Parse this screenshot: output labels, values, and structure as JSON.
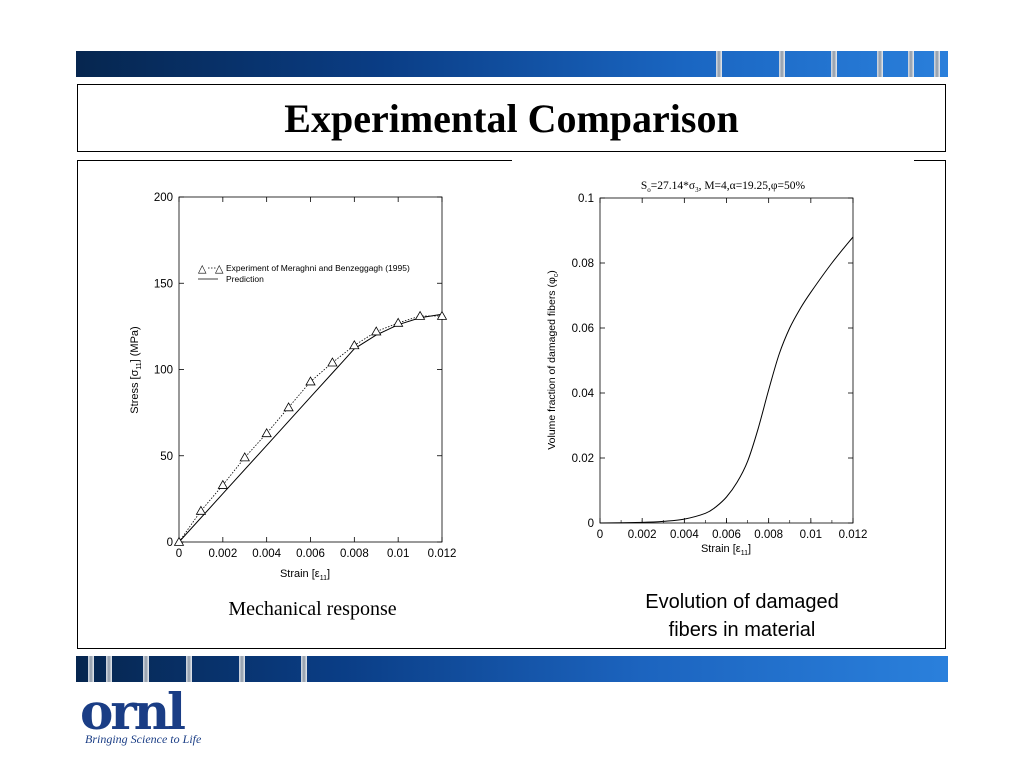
{
  "slide": {
    "title": "Experimental Comparison",
    "caption_left": "Mechanical response",
    "caption_right_line1": "Evolution of damaged",
    "caption_right_line2": "fibers in material",
    "logo_text": "ornl",
    "logo_tagline": "Bringing Science to Life"
  },
  "colors": {
    "band_dark": "#06264f",
    "band_light": "#2a7fdb",
    "logo": "#1a3d85"
  },
  "chart_data": [
    {
      "type": "line",
      "xlabel_main": "Strain [ε",
      "xlabel_sub": "11",
      "xlabel_end": "]",
      "ylabel_main": "Stress [σ",
      "ylabel_sub": "11",
      "ylabel_end": "] (MPa)",
      "xlim": [
        0,
        0.012
      ],
      "ylim": [
        0,
        200
      ],
      "x_ticks": [
        "0",
        "0.002",
        "0.004",
        "0.006",
        "0.008",
        "0.01",
        "0.012"
      ],
      "y_ticks": [
        "0",
        "50",
        "100",
        "150",
        "200"
      ],
      "legend_position": "upper-left",
      "series": [
        {
          "name": "Experiment of Meraghni and Benzeggagh (1995)",
          "style": "dotted-triangle",
          "x": [
            0,
            0.001,
            0.002,
            0.003,
            0.004,
            0.005,
            0.006,
            0.007,
            0.008,
            0.009,
            0.01,
            0.011,
            0.012
          ],
          "y": [
            0,
            18,
            33,
            49,
            63,
            78,
            93,
            104,
            114,
            122,
            127,
            131,
            131
          ]
        },
        {
          "name": "Prediction",
          "style": "solid",
          "x": [
            0,
            0.002,
            0.004,
            0.006,
            0.007,
            0.0075,
            0.008,
            0.009,
            0.01,
            0.011,
            0.012
          ],
          "y": [
            0,
            28,
            56,
            84,
            98,
            105,
            112,
            120,
            126,
            130,
            132
          ]
        }
      ]
    },
    {
      "type": "line",
      "title_main": "S",
      "title_sub": "o",
      "title_rest": "=27.14*σ",
      "title_sub2": "3",
      "title_end": ", M=4,α=19.25,φ=50%",
      "xlabel_main": "Strain [ε",
      "xlabel_sub": "11",
      "xlabel_end": "]",
      "ylabel_main": "Volume fraction of damaged fibers (φ",
      "ylabel_sub": "c",
      "ylabel_end": ")",
      "xlim": [
        0,
        0.012
      ],
      "ylim": [
        0,
        0.1
      ],
      "x_ticks": [
        "0",
        "0.002",
        "0.004",
        "0.006",
        "0.008",
        "0.01",
        "0.012"
      ],
      "y_ticks": [
        "0",
        "0.02",
        "0.04",
        "0.06",
        "0.08",
        "0.1"
      ],
      "series": [
        {
          "x": [
            0,
            0.002,
            0.003,
            0.004,
            0.005,
            0.0055,
            0.006,
            0.0065,
            0.007,
            0.0075,
            0.008,
            0.0085,
            0.009,
            0.0095,
            0.01,
            0.011,
            0.012
          ],
          "y": [
            0,
            0.0002,
            0.0005,
            0.0012,
            0.003,
            0.005,
            0.008,
            0.0125,
            0.019,
            0.029,
            0.041,
            0.052,
            0.06,
            0.066,
            0.071,
            0.08,
            0.088
          ]
        }
      ]
    }
  ]
}
